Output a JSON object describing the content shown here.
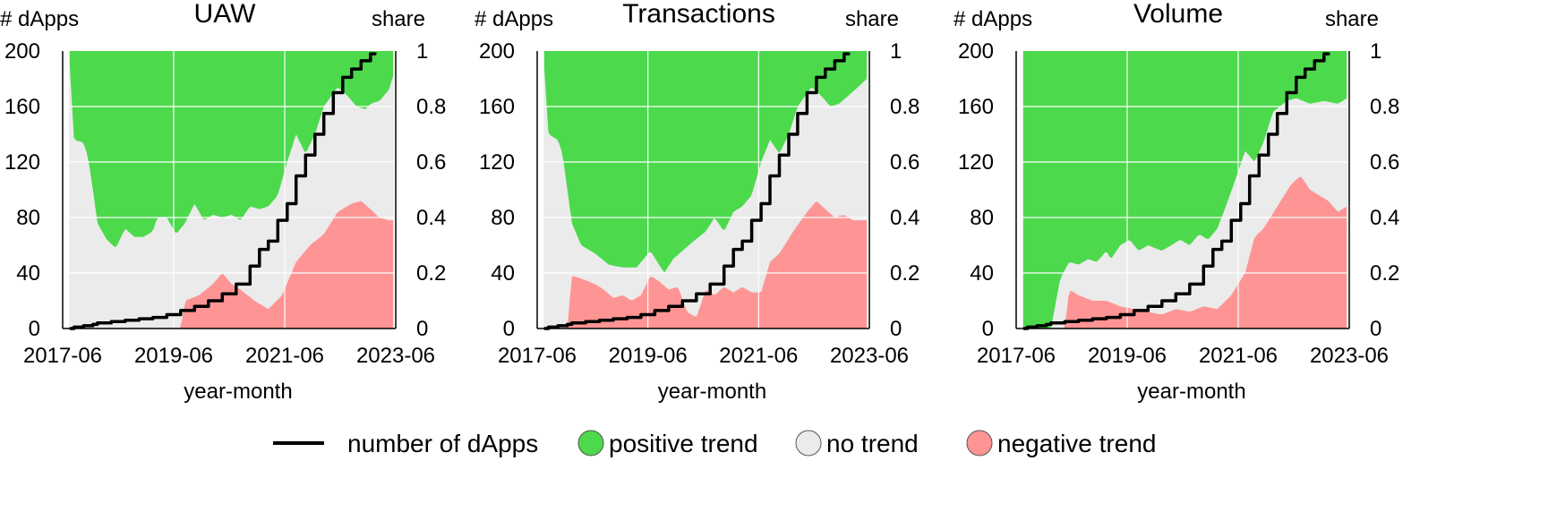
{
  "colors": {
    "positive": "#4cd94c",
    "none": "#ebebeb",
    "negative": "#ff9494",
    "line": "#000000",
    "grid": "#ffffff"
  },
  "legend": {
    "items": [
      {
        "label": "number of dApps",
        "kind": "line"
      },
      {
        "label": "positive trend",
        "kind": "positive"
      },
      {
        "label": "no trend",
        "kind": "none"
      },
      {
        "label": "negative trend",
        "kind": "negative"
      }
    ]
  },
  "chart_data": [
    {
      "type": "area",
      "title": "UAW",
      "xlabel": "year-month",
      "ylabel_left": "# dApps",
      "ylabel_right": "share",
      "x_ticks": [
        "2017-06",
        "2019-06",
        "2021-06",
        "2023-06"
      ],
      "x_range": [
        2017.375,
        2023.375
      ],
      "ylim_left": [
        0,
        200
      ],
      "ylim_right": [
        0,
        1
      ],
      "yticks_left": [
        "0",
        "40",
        "80",
        "120",
        "160",
        "200"
      ],
      "yticks_right": [
        "0",
        "0.2",
        "0.4",
        "0.6",
        "0.8",
        "1"
      ],
      "grid": true,
      "negative_share": [
        [
          2017.5,
          0
        ],
        [
          2019.5,
          0
        ],
        [
          2019.58,
          0.1
        ],
        [
          2019.83,
          0.12
        ],
        [
          2020.08,
          0.16
        ],
        [
          2020.25,
          0.2
        ],
        [
          2020.42,
          0.16
        ],
        [
          2020.58,
          0.14
        ],
        [
          2020.83,
          0.1
        ],
        [
          2021.08,
          0.07
        ],
        [
          2021.33,
          0.12
        ],
        [
          2021.58,
          0.24
        ],
        [
          2021.83,
          0.3
        ],
        [
          2022.08,
          0.34
        ],
        [
          2022.33,
          0.42
        ],
        [
          2022.58,
          0.45
        ],
        [
          2022.75,
          0.46
        ],
        [
          2022.92,
          0.43
        ],
        [
          2023.08,
          0.4
        ],
        [
          2023.25,
          0.39
        ],
        [
          2023.33,
          0.39
        ]
      ],
      "nontrend_cum": [
        [
          2017.5,
          0.95
        ],
        [
          2017.58,
          0.68
        ],
        [
          2017.75,
          0.67
        ],
        [
          2017.83,
          0.62
        ],
        [
          2017.92,
          0.5
        ],
        [
          2018.0,
          0.38
        ],
        [
          2018.17,
          0.32
        ],
        [
          2018.33,
          0.29
        ],
        [
          2018.5,
          0.36
        ],
        [
          2018.67,
          0.33
        ],
        [
          2018.83,
          0.33
        ],
        [
          2019.0,
          0.35
        ],
        [
          2019.08,
          0.4
        ],
        [
          2019.25,
          0.4
        ],
        [
          2019.42,
          0.34
        ],
        [
          2019.58,
          0.38
        ],
        [
          2019.75,
          0.45
        ],
        [
          2019.92,
          0.39
        ],
        [
          2020.08,
          0.41
        ],
        [
          2020.25,
          0.4
        ],
        [
          2020.42,
          0.41
        ],
        [
          2020.58,
          0.39
        ],
        [
          2020.75,
          0.44
        ],
        [
          2020.92,
          0.43
        ],
        [
          2021.08,
          0.44
        ],
        [
          2021.25,
          0.48
        ],
        [
          2021.42,
          0.6
        ],
        [
          2021.58,
          0.7
        ],
        [
          2021.75,
          0.63
        ],
        [
          2021.92,
          0.7
        ],
        [
          2022.08,
          0.8
        ],
        [
          2022.33,
          0.87
        ],
        [
          2022.5,
          0.84
        ],
        [
          2022.67,
          0.8
        ],
        [
          2022.83,
          0.79
        ],
        [
          2022.92,
          0.81
        ],
        [
          2023.08,
          0.82
        ],
        [
          2023.25,
          0.86
        ],
        [
          2023.33,
          0.91
        ]
      ],
      "dapps": [
        [
          2017.5,
          0
        ],
        [
          2017.58,
          1
        ],
        [
          2017.75,
          2
        ],
        [
          2017.92,
          3
        ],
        [
          2018.0,
          4
        ],
        [
          2018.25,
          5
        ],
        [
          2018.5,
          6
        ],
        [
          2018.75,
          7
        ],
        [
          2019.0,
          8
        ],
        [
          2019.25,
          10
        ],
        [
          2019.5,
          13
        ],
        [
          2019.75,
          16
        ],
        [
          2020.0,
          20
        ],
        [
          2020.25,
          25
        ],
        [
          2020.5,
          32
        ],
        [
          2020.75,
          45
        ],
        [
          2020.92,
          57
        ],
        [
          2021.08,
          63
        ],
        [
          2021.25,
          78
        ],
        [
          2021.42,
          90
        ],
        [
          2021.58,
          110
        ],
        [
          2021.75,
          125
        ],
        [
          2021.92,
          140
        ],
        [
          2022.08,
          155
        ],
        [
          2022.25,
          170
        ],
        [
          2022.42,
          181
        ],
        [
          2022.58,
          187
        ],
        [
          2022.75,
          193
        ],
        [
          2022.92,
          198
        ],
        [
          2023.0,
          199
        ]
      ]
    },
    {
      "type": "area",
      "title": "Transactions",
      "xlabel": "year-month",
      "ylabel_left": "# dApps",
      "ylabel_right": "share",
      "x_ticks": [
        "2017-06",
        "2019-06",
        "2021-06",
        "2023-06"
      ],
      "x_range": [
        2017.375,
        2023.375
      ],
      "ylim_left": [
        0,
        200
      ],
      "ylim_right": [
        0,
        1
      ],
      "yticks_left": [
        "0",
        "40",
        "80",
        "120",
        "160",
        "200"
      ],
      "yticks_right": [
        "0",
        "0.2",
        "0.4",
        "0.6",
        "0.8",
        "1"
      ],
      "grid": true,
      "negative_share": [
        [
          2017.5,
          0
        ],
        [
          2017.92,
          0
        ],
        [
          2018.0,
          0.19
        ],
        [
          2018.17,
          0.18
        ],
        [
          2018.42,
          0.16
        ],
        [
          2018.58,
          0.14
        ],
        [
          2018.75,
          0.11
        ],
        [
          2018.92,
          0.12
        ],
        [
          2019.08,
          0.1
        ],
        [
          2019.25,
          0.12
        ],
        [
          2019.42,
          0.19
        ],
        [
          2019.58,
          0.17
        ],
        [
          2019.75,
          0.14
        ],
        [
          2019.92,
          0.15
        ],
        [
          2020.08,
          0.06
        ],
        [
          2020.25,
          0.04
        ],
        [
          2020.42,
          0.14
        ],
        [
          2020.58,
          0.12
        ],
        [
          2020.75,
          0.15
        ],
        [
          2020.92,
          0.13
        ],
        [
          2021.08,
          0.15
        ],
        [
          2021.25,
          0.13
        ],
        [
          2021.42,
          0.13
        ],
        [
          2021.58,
          0.24
        ],
        [
          2021.75,
          0.27
        ],
        [
          2022.0,
          0.35
        ],
        [
          2022.25,
          0.42
        ],
        [
          2022.42,
          0.46
        ],
        [
          2022.58,
          0.43
        ],
        [
          2022.75,
          0.4
        ],
        [
          2022.92,
          0.41
        ],
        [
          2023.08,
          0.39
        ],
        [
          2023.33,
          0.39
        ]
      ],
      "nontrend_cum": [
        [
          2017.5,
          0.95
        ],
        [
          2017.58,
          0.7
        ],
        [
          2017.75,
          0.68
        ],
        [
          2017.83,
          0.63
        ],
        [
          2017.92,
          0.5
        ],
        [
          2018.0,
          0.38
        ],
        [
          2018.17,
          0.3
        ],
        [
          2018.42,
          0.27
        ],
        [
          2018.67,
          0.23
        ],
        [
          2018.92,
          0.22
        ],
        [
          2019.17,
          0.22
        ],
        [
          2019.42,
          0.28
        ],
        [
          2019.67,
          0.2
        ],
        [
          2019.83,
          0.25
        ],
        [
          2020.0,
          0.28
        ],
        [
          2020.17,
          0.31
        ],
        [
          2020.42,
          0.35
        ],
        [
          2020.58,
          0.4
        ],
        [
          2020.75,
          0.35
        ],
        [
          2020.92,
          0.42
        ],
        [
          2021.08,
          0.44
        ],
        [
          2021.25,
          0.48
        ],
        [
          2021.42,
          0.6
        ],
        [
          2021.58,
          0.68
        ],
        [
          2021.75,
          0.63
        ],
        [
          2021.92,
          0.7
        ],
        [
          2022.08,
          0.8
        ],
        [
          2022.33,
          0.87
        ],
        [
          2022.5,
          0.84
        ],
        [
          2022.67,
          0.8
        ],
        [
          2022.83,
          0.81
        ],
        [
          2023.0,
          0.84
        ],
        [
          2023.17,
          0.87
        ],
        [
          2023.33,
          0.9
        ]
      ],
      "dapps": [
        [
          2017.5,
          0
        ],
        [
          2017.58,
          1
        ],
        [
          2017.75,
          2
        ],
        [
          2017.92,
          3
        ],
        [
          2018.0,
          4
        ],
        [
          2018.25,
          5
        ],
        [
          2018.5,
          6
        ],
        [
          2018.75,
          7
        ],
        [
          2019.0,
          8
        ],
        [
          2019.25,
          10
        ],
        [
          2019.5,
          13
        ],
        [
          2019.75,
          16
        ],
        [
          2020.0,
          20
        ],
        [
          2020.25,
          25
        ],
        [
          2020.5,
          32
        ],
        [
          2020.75,
          45
        ],
        [
          2020.92,
          57
        ],
        [
          2021.08,
          63
        ],
        [
          2021.25,
          78
        ],
        [
          2021.42,
          90
        ],
        [
          2021.58,
          110
        ],
        [
          2021.75,
          125
        ],
        [
          2021.92,
          140
        ],
        [
          2022.08,
          155
        ],
        [
          2022.25,
          170
        ],
        [
          2022.42,
          181
        ],
        [
          2022.58,
          187
        ],
        [
          2022.75,
          193
        ],
        [
          2022.92,
          198
        ],
        [
          2023.0,
          199
        ]
      ]
    },
    {
      "type": "area",
      "title": "Volume",
      "xlabel": "year-month",
      "ylabel_left": "# dApps",
      "ylabel_right": "share",
      "x_ticks": [
        "2017-06",
        "2019-06",
        "2021-06",
        "2023-06"
      ],
      "x_range": [
        2017.375,
        2023.375
      ],
      "ylim_left": [
        0,
        200
      ],
      "ylim_right": [
        0,
        1
      ],
      "yticks_left": [
        "0",
        "40",
        "80",
        "120",
        "160",
        "200"
      ],
      "yticks_right": [
        "0",
        "0.2",
        "0.4",
        "0.6",
        "0.8",
        "1"
      ],
      "grid": true,
      "negative_share": [
        [
          2017.5,
          0
        ],
        [
          2018.25,
          0
        ],
        [
          2018.33,
          0.14
        ],
        [
          2018.5,
          0.12
        ],
        [
          2018.75,
          0.1
        ],
        [
          2019.0,
          0.1
        ],
        [
          2019.25,
          0.08
        ],
        [
          2019.5,
          0.07
        ],
        [
          2019.75,
          0.06
        ],
        [
          2020.0,
          0.05
        ],
        [
          2020.25,
          0.07
        ],
        [
          2020.5,
          0.06
        ],
        [
          2020.75,
          0.08
        ],
        [
          2021.0,
          0.07
        ],
        [
          2021.25,
          0.12
        ],
        [
          2021.5,
          0.2
        ],
        [
          2021.67,
          0.33
        ],
        [
          2021.83,
          0.36
        ],
        [
          2022.08,
          0.44
        ],
        [
          2022.33,
          0.52
        ],
        [
          2022.5,
          0.55
        ],
        [
          2022.67,
          0.5
        ],
        [
          2022.83,
          0.48
        ],
        [
          2023.0,
          0.46
        ],
        [
          2023.17,
          0.42
        ],
        [
          2023.33,
          0.44
        ]
      ],
      "nontrend_cum": [
        [
          2017.5,
          0
        ],
        [
          2018.0,
          0
        ],
        [
          2018.17,
          0.18
        ],
        [
          2018.33,
          0.24
        ],
        [
          2018.5,
          0.23
        ],
        [
          2018.67,
          0.25
        ],
        [
          2018.83,
          0.24
        ],
        [
          2019.0,
          0.28
        ],
        [
          2019.08,
          0.25
        ],
        [
          2019.25,
          0.3
        ],
        [
          2019.42,
          0.32
        ],
        [
          2019.58,
          0.28
        ],
        [
          2019.75,
          0.3
        ],
        [
          2020.0,
          0.28
        ],
        [
          2020.17,
          0.3
        ],
        [
          2020.33,
          0.32
        ],
        [
          2020.5,
          0.3
        ],
        [
          2020.67,
          0.34
        ],
        [
          2020.83,
          0.32
        ],
        [
          2021.0,
          0.36
        ],
        [
          2021.17,
          0.45
        ],
        [
          2021.33,
          0.54
        ],
        [
          2021.5,
          0.64
        ],
        [
          2021.67,
          0.6
        ],
        [
          2021.83,
          0.67
        ],
        [
          2022.0,
          0.78
        ],
        [
          2022.25,
          0.82
        ],
        [
          2022.42,
          0.83
        ],
        [
          2022.67,
          0.81
        ],
        [
          2022.92,
          0.82
        ],
        [
          2023.17,
          0.81
        ],
        [
          2023.33,
          0.83
        ]
      ],
      "dapps": [
        [
          2017.5,
          0
        ],
        [
          2017.58,
          1
        ],
        [
          2017.75,
          2
        ],
        [
          2017.92,
          3
        ],
        [
          2018.0,
          4
        ],
        [
          2018.25,
          5
        ],
        [
          2018.5,
          6
        ],
        [
          2018.75,
          7
        ],
        [
          2019.0,
          8
        ],
        [
          2019.25,
          10
        ],
        [
          2019.5,
          13
        ],
        [
          2019.75,
          16
        ],
        [
          2020.0,
          20
        ],
        [
          2020.25,
          25
        ],
        [
          2020.5,
          32
        ],
        [
          2020.75,
          45
        ],
        [
          2020.92,
          57
        ],
        [
          2021.08,
          63
        ],
        [
          2021.25,
          78
        ],
        [
          2021.42,
          90
        ],
        [
          2021.58,
          110
        ],
        [
          2021.75,
          125
        ],
        [
          2021.92,
          140
        ],
        [
          2022.08,
          155
        ],
        [
          2022.25,
          170
        ],
        [
          2022.42,
          181
        ],
        [
          2022.58,
          187
        ],
        [
          2022.75,
          193
        ],
        [
          2022.92,
          198
        ],
        [
          2023.0,
          199
        ]
      ]
    }
  ]
}
